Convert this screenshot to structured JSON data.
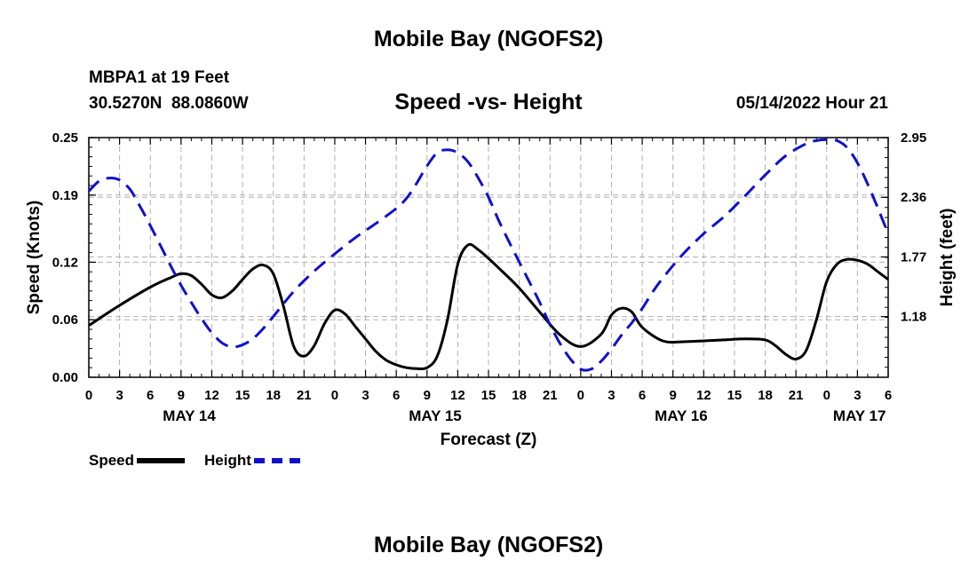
{
  "header": {
    "title": "Mobile Bay (NGOFS2)",
    "station": "MBPA1 at 19 Feet",
    "coords": "30.5270N  88.0860W",
    "chart_title": "Speed -vs- Height",
    "forecast_time": "05/14/2022 Hour 21"
  },
  "footer": {
    "title": "Mobile Bay (NGOFS2)"
  },
  "legend": {
    "speed_label": "Speed",
    "height_label": "Height"
  },
  "colors": {
    "speed": "#000000",
    "height": "#1010cc",
    "grid": "#b0b0b0"
  },
  "chart_data": {
    "type": "line",
    "title": "Speed -vs- Height",
    "xlabel": "Forecast (Z)",
    "ylabel": "Speed (Knots)",
    "y2label": "Height (feet)",
    "xlim": [
      0,
      78
    ],
    "ylim": [
      0,
      0.25
    ],
    "y2lim": [
      0.58,
      2.95
    ],
    "yticks": [
      0,
      0.06,
      0.12,
      0.19,
      0.25
    ],
    "ytick_labels": [
      "0.00",
      "0.06",
      "0.12",
      "0.19",
      "0.25"
    ],
    "y2ticks": [
      1.18,
      1.77,
      2.36,
      2.95
    ],
    "y2tick_labels": [
      "1.18",
      "1.77",
      "2.36",
      "2.95"
    ],
    "xticks": [
      0,
      3,
      6,
      9,
      12,
      15,
      18,
      21,
      24,
      27,
      30,
      33,
      36,
      39,
      42,
      45,
      48,
      51,
      54,
      57,
      60,
      63,
      66,
      69,
      72,
      75,
      78
    ],
    "xtick_labels": [
      "0",
      "3",
      "6",
      "9",
      "12",
      "15",
      "18",
      "21",
      "0",
      "3",
      "6",
      "9",
      "12",
      "15",
      "18",
      "21",
      "0",
      "3",
      "6",
      "9",
      "12",
      "15",
      "18",
      "21",
      "0",
      "3",
      "6"
    ],
    "date_labels": [
      {
        "x": 9.8,
        "label": "MAY 14"
      },
      {
        "x": 33.8,
        "label": "MAY 15"
      },
      {
        "x": 57.8,
        "label": "MAY 16"
      },
      {
        "x": 75.2,
        "label": "MAY 17"
      }
    ],
    "grid": true,
    "series": [
      {
        "name": "Speed",
        "axis": "left",
        "style": "solid",
        "x": [
          0,
          3,
          6,
          8,
          9,
          10,
          11,
          12,
          13,
          14,
          15,
          16,
          17,
          18,
          19,
          20,
          21,
          22,
          23,
          24,
          25,
          26,
          27,
          28,
          29,
          30,
          31,
          32,
          33,
          34,
          35,
          36,
          37,
          38,
          39,
          40,
          42,
          44,
          46,
          48,
          50,
          51,
          52,
          53,
          54,
          56,
          58,
          60,
          62,
          64,
          66,
          67,
          68,
          69,
          70,
          71,
          72,
          73,
          74,
          75,
          76,
          77,
          78
        ],
        "y": [
          0.054,
          0.075,
          0.094,
          0.104,
          0.108,
          0.106,
          0.097,
          0.086,
          0.083,
          0.09,
          0.102,
          0.113,
          0.117,
          0.108,
          0.074,
          0.032,
          0.022,
          0.033,
          0.056,
          0.07,
          0.066,
          0.053,
          0.04,
          0.027,
          0.018,
          0.013,
          0.01,
          0.009,
          0.01,
          0.022,
          0.06,
          0.118,
          0.138,
          0.133,
          0.124,
          0.114,
          0.093,
          0.068,
          0.044,
          0.032,
          0.045,
          0.065,
          0.072,
          0.068,
          0.052,
          0.038,
          0.037,
          0.038,
          0.039,
          0.04,
          0.039,
          0.033,
          0.024,
          0.019,
          0.028,
          0.06,
          0.1,
          0.118,
          0.123,
          0.122,
          0.118,
          0.11,
          0.102
        ]
      },
      {
        "name": "Height",
        "axis": "right",
        "style": "dashed",
        "x": [
          0,
          1,
          2,
          3,
          4,
          5,
          6,
          7,
          8,
          9,
          10,
          11,
          12,
          13,
          14,
          15,
          16,
          17,
          18,
          20,
          22,
          24,
          26,
          28,
          30,
          31,
          32,
          33,
          34,
          35,
          36,
          37,
          38,
          39,
          40,
          41,
          42,
          43,
          44,
          45,
          46,
          47,
          48,
          49,
          50,
          51,
          52,
          53,
          54,
          55,
          56,
          58,
          60,
          62,
          64,
          66,
          68,
          70,
          71,
          72,
          73,
          74,
          75,
          76,
          77,
          78
        ],
        "y": [
          2.42,
          2.52,
          2.55,
          2.53,
          2.44,
          2.27,
          2.08,
          1.88,
          1.68,
          1.49,
          1.32,
          1.16,
          1.02,
          0.92,
          0.88,
          0.9,
          0.96,
          1.06,
          1.18,
          1.43,
          1.63,
          1.8,
          1.96,
          2.1,
          2.25,
          2.35,
          2.5,
          2.67,
          2.8,
          2.83,
          2.8,
          2.71,
          2.55,
          2.36,
          2.13,
          1.92,
          1.72,
          1.52,
          1.32,
          1.1,
          0.91,
          0.76,
          0.66,
          0.66,
          0.74,
          0.86,
          1.0,
          1.12,
          1.26,
          1.42,
          1.56,
          1.8,
          2.0,
          2.17,
          2.37,
          2.58,
          2.77,
          2.89,
          2.92,
          2.93,
          2.92,
          2.85,
          2.7,
          2.49,
          2.25,
          2.0
        ]
      }
    ]
  }
}
